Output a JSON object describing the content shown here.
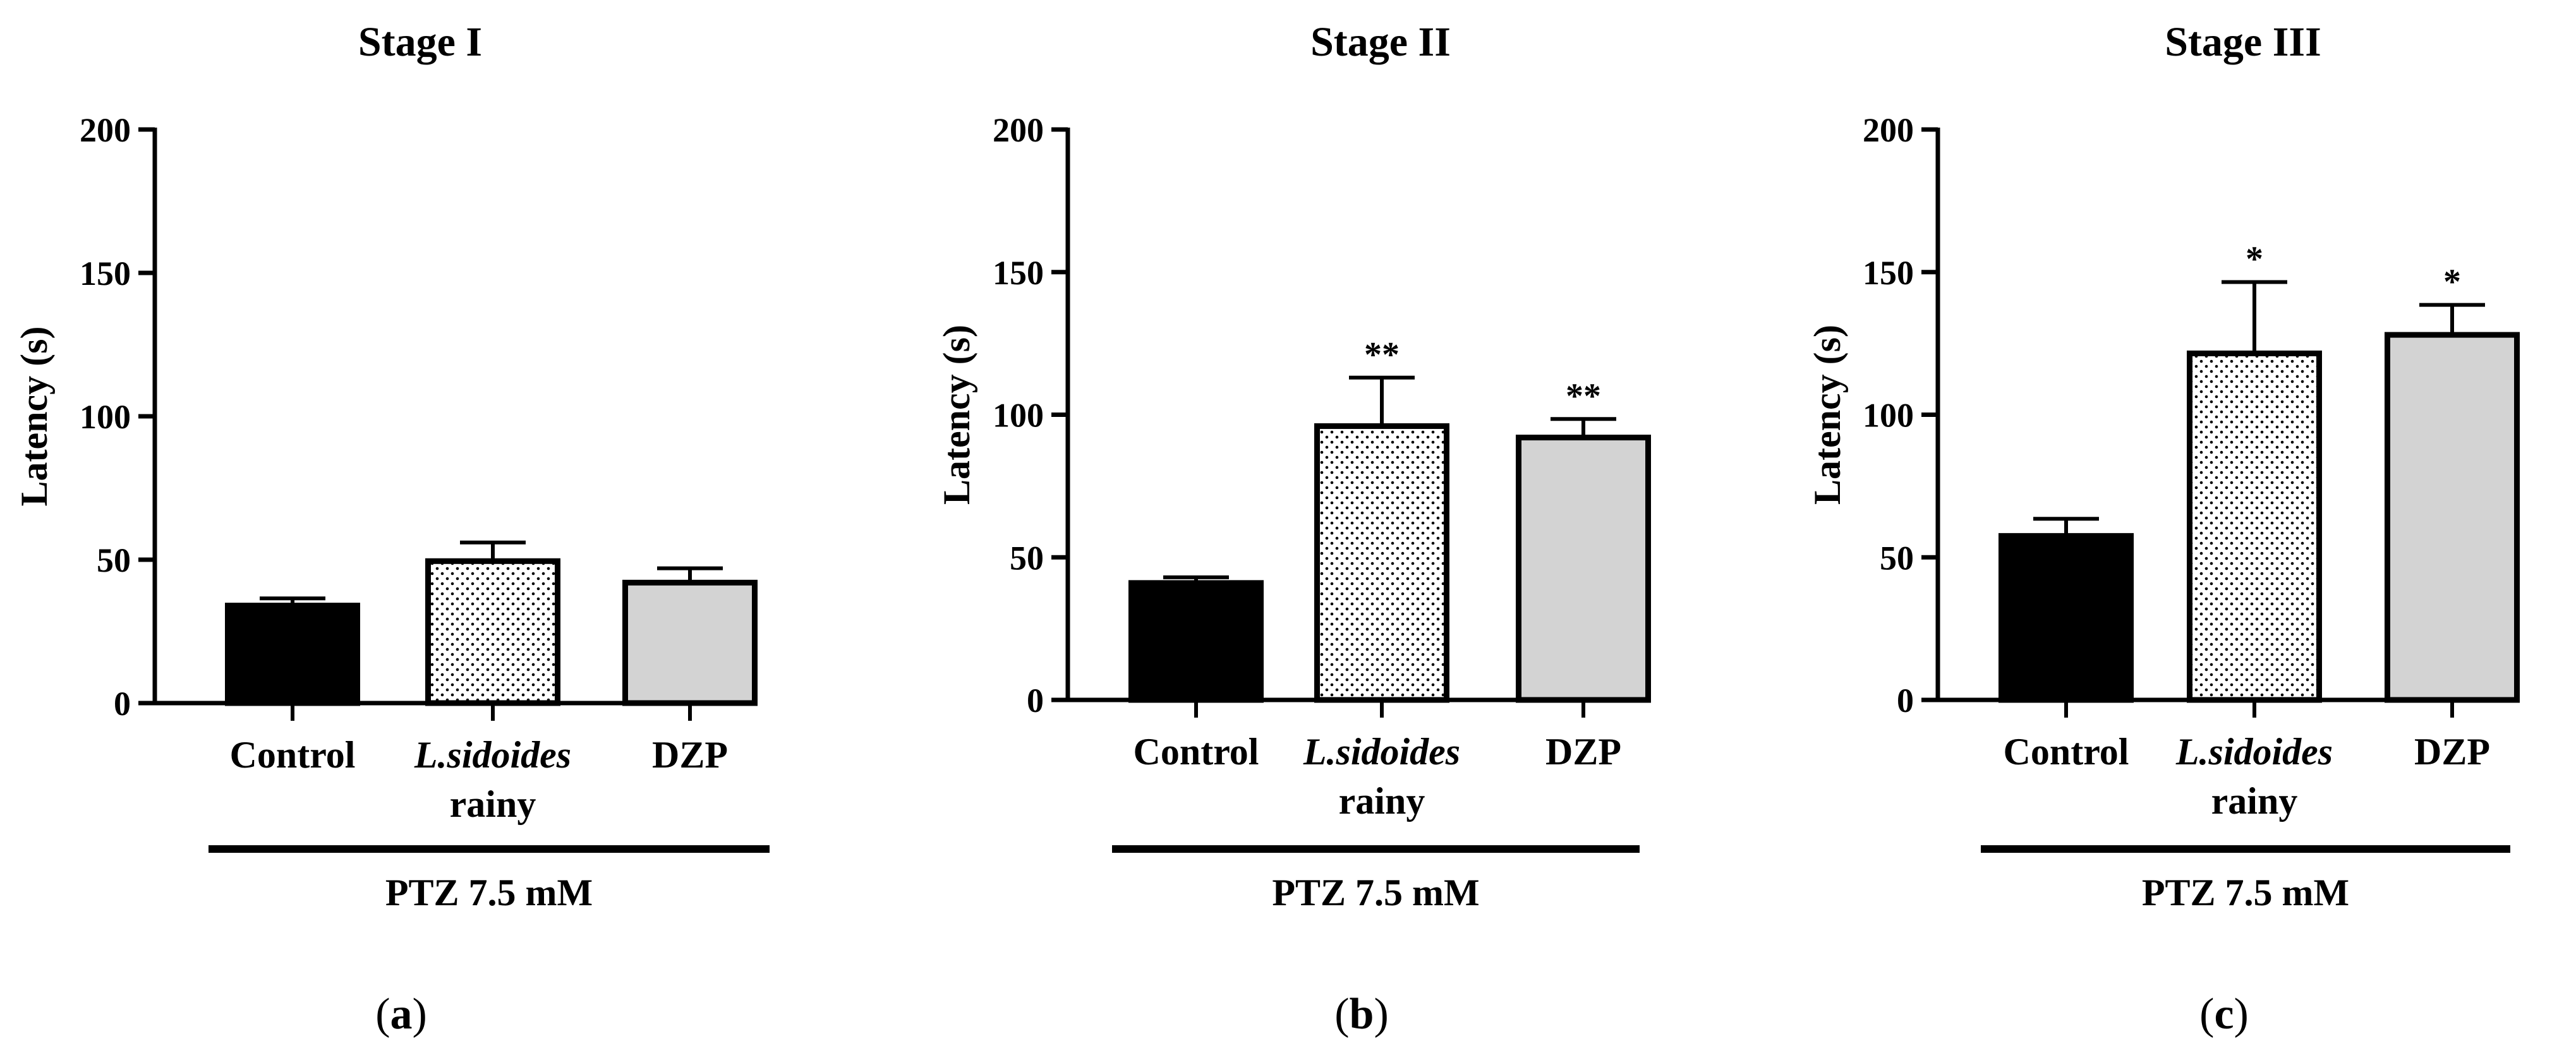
{
  "figure": {
    "colors": {
      "control_fill": "#000000",
      "lsidoides_fill": "#ffffff",
      "lsidoides_dots": "#000000",
      "dzp_fill": "#d3d3d3",
      "stroke": "#000000"
    }
  },
  "chart_data": [
    {
      "type": "bar",
      "panel": "(a)",
      "panel_letter": "a",
      "title": "Stage I",
      "ylabel": "Latency (s)",
      "xlabel": "",
      "ylim": [
        0,
        200
      ],
      "yticks": [
        0,
        50,
        100,
        150,
        200
      ],
      "categories": [
        "Control",
        "L.sidoides rainy",
        "DZP"
      ],
      "category_lines": [
        [
          "Control"
        ],
        [
          "L.sidoides",
          "rainy"
        ],
        [
          "DZP"
        ]
      ],
      "values": [
        34,
        49.5,
        42
      ],
      "errors": [
        2.5,
        6.5,
        5
      ],
      "significance": [
        "",
        "",
        ""
      ],
      "group_label": "PTZ 7.5 mM"
    },
    {
      "type": "bar",
      "panel": "(b)",
      "panel_letter": "b",
      "title": "Stage II",
      "ylabel": "Latency (s)",
      "xlabel": "",
      "ylim": [
        0,
        200
      ],
      "yticks": [
        0,
        50,
        100,
        150,
        200
      ],
      "categories": [
        "Control",
        "L.sidoides rainy",
        "DZP"
      ],
      "category_lines": [
        [
          "Control"
        ],
        [
          "L.sidoides",
          "rainy"
        ],
        [
          "DZP"
        ]
      ],
      "values": [
        41,
        96,
        92
      ],
      "errors": [
        2,
        17,
        6.5
      ],
      "significance": [
        "",
        "**",
        "**"
      ],
      "group_label": "PTZ 7.5 mM"
    },
    {
      "type": "bar",
      "panel": "(c)",
      "panel_letter": "c",
      "title": "Stage III",
      "ylabel": "Latency (s)",
      "xlabel": "",
      "ylim": [
        0,
        200
      ],
      "yticks": [
        0,
        50,
        100,
        150,
        200
      ],
      "categories": [
        "Control",
        "L.sidoides rainy",
        "DZP"
      ],
      "category_lines": [
        [
          "Control"
        ],
        [
          "L.sidoides",
          "rainy"
        ],
        [
          "DZP"
        ]
      ],
      "values": [
        57.5,
        121.5,
        128
      ],
      "errors": [
        6,
        25,
        10.5
      ],
      "significance": [
        "",
        "*",
        "*"
      ],
      "group_label": "PTZ 7.5 mM"
    }
  ]
}
